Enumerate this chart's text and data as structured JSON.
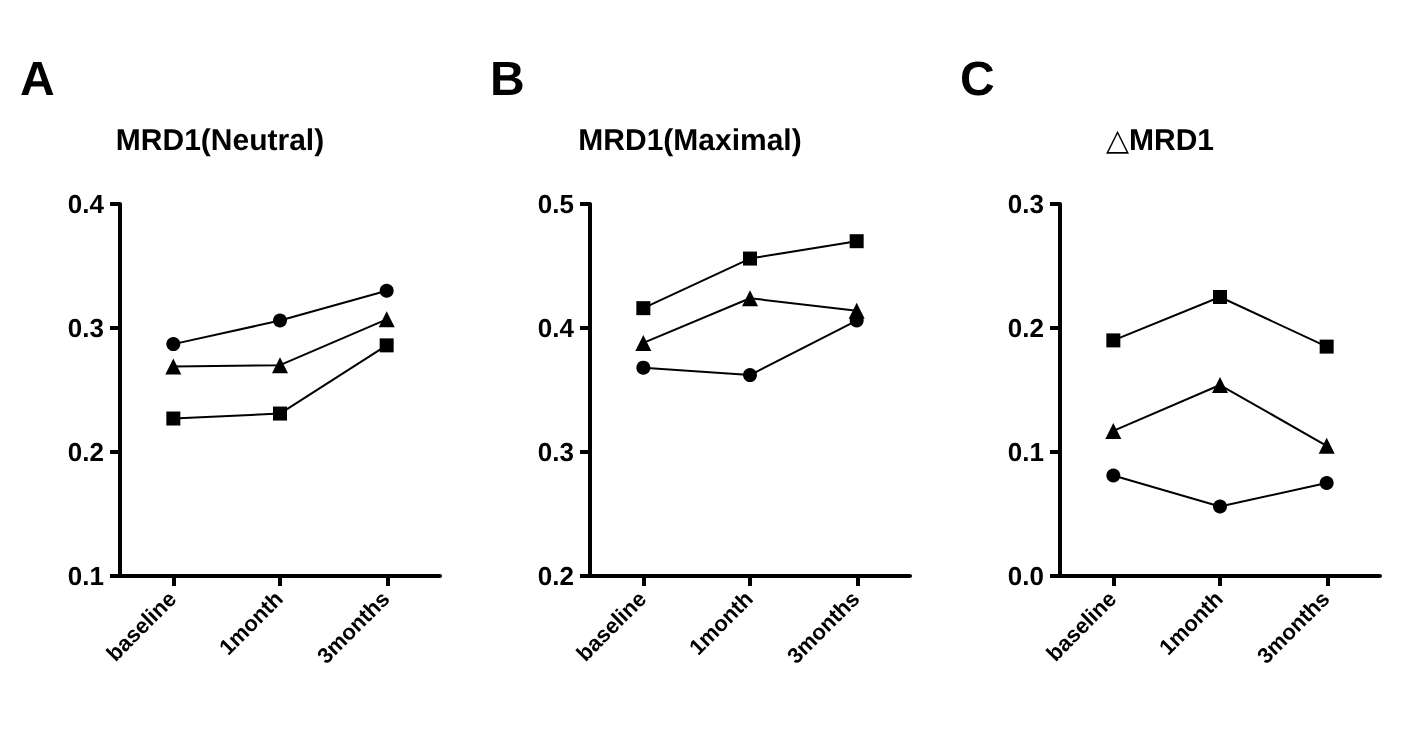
{
  "chart_data": [
    {
      "type": "line",
      "title": "MRD1(Neutral)",
      "annotations": [
        "A"
      ],
      "categories": [
        "baseline",
        "1month",
        "3months"
      ],
      "ylim": [
        0.1,
        0.4
      ],
      "yticks": [
        0.1,
        0.2,
        0.3,
        0.4
      ],
      "grid": false,
      "line_style": "solid",
      "series": [
        {
          "color": "#000000",
          "marker": "circle",
          "values": [
            0.287,
            0.306,
            0.33
          ]
        },
        {
          "color": "#000000",
          "marker": "triangle",
          "values": [
            0.269,
            0.27,
            0.307
          ]
        },
        {
          "color": "#000000",
          "marker": "square",
          "values": [
            0.227,
            0.231,
            0.286
          ]
        }
      ]
    },
    {
      "type": "line",
      "title": "MRD1(Maximal)",
      "annotations": [
        "B"
      ],
      "categories": [
        "baseline",
        "1month",
        "3months"
      ],
      "ylim": [
        0.2,
        0.5
      ],
      "yticks": [
        0.2,
        0.3,
        0.4,
        0.5
      ],
      "grid": false,
      "line_style": "solid",
      "series": [
        {
          "color": "#000000",
          "marker": "square",
          "values": [
            0.416,
            0.456,
            0.47
          ]
        },
        {
          "color": "#000000",
          "marker": "triangle",
          "values": [
            0.388,
            0.424,
            0.414
          ]
        },
        {
          "color": "#000000",
          "marker": "circle",
          "values": [
            0.368,
            0.362,
            0.406
          ]
        }
      ]
    },
    {
      "type": "line",
      "title": "△MRD1",
      "annotations": [
        "C"
      ],
      "categories": [
        "baseline",
        "1month",
        "3months"
      ],
      "ylim": [
        0,
        0.3
      ],
      "yticks": [
        {
          "value": 0,
          "label": "0.0"
        },
        0.1,
        0.2,
        0.3
      ],
      "grid": false,
      "line_style": "solid",
      "series": [
        {
          "color": "#000000",
          "marker": "square",
          "values": [
            0.19,
            0.225,
            0.185
          ]
        },
        {
          "color": "#000000",
          "marker": "triangle",
          "values": [
            0.117,
            0.154,
            0.105
          ]
        },
        {
          "color": "#000000",
          "marker": "circle",
          "values": [
            0.081,
            0.056,
            0.075
          ]
        }
      ]
    }
  ]
}
